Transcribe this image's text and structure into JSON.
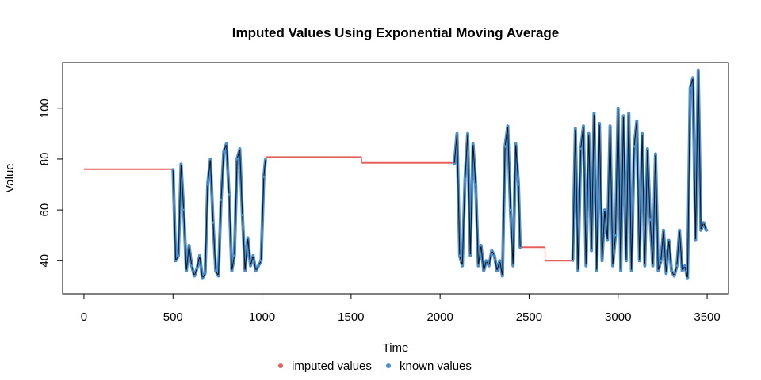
{
  "chart_data": {
    "type": "line",
    "title": "Imputed Values Using Exponential Moving Average",
    "xlabel": "Time",
    "ylabel": "Value",
    "xlim": [
      -120,
      3620
    ],
    "ylim": [
      27,
      118
    ],
    "xticks": [
      0,
      500,
      1000,
      1500,
      2000,
      2500,
      3000,
      3500
    ],
    "yticks": [
      40,
      60,
      80,
      100
    ],
    "legend_position": "bottom",
    "series": [
      {
        "name": "imputed values",
        "color": "#e8605b",
        "segments": [
          {
            "x": [
              0,
              500
            ],
            "y": [
              76,
              76
            ]
          },
          {
            "x": [
              1020,
              1560
            ],
            "y": [
              80.8,
              80.8
            ]
          },
          {
            "x": [
              1560,
              2080
            ],
            "y": [
              78.5,
              78.5
            ]
          },
          {
            "x": [
              2450,
              2590
            ],
            "y": [
              45.3,
              45.3
            ]
          },
          {
            "x": [
              2590,
              2745
            ],
            "y": [
              40,
              40
            ]
          }
        ]
      },
      {
        "name": "known values",
        "color": "#4a8fcf",
        "segments": [
          {
            "x": [
              500,
              515,
              530,
              545,
              560,
              575,
              590,
              605,
              620,
              635,
              650,
              665,
              680,
              695,
              710,
              725,
              740,
              755,
              770,
              785,
              800,
              815,
              830,
              845,
              860,
              875,
              890,
              905,
              920,
              935,
              950,
              965,
              980,
              995,
              1010,
              1020
            ],
            "y": [
              76,
              40,
              42,
              78,
              60,
              36,
              46,
              38,
              34,
              37,
              42,
              33,
              35,
              70,
              80,
              55,
              36,
              34,
              64,
              83,
              86,
              66,
              36,
              42,
              80,
              84,
              58,
              36,
              49,
              38,
              42,
              36,
              38,
              40,
              73,
              80
            ]
          },
          {
            "x": [
              2080,
              2095,
              2110,
              2125,
              2140,
              2155,
              2170,
              2185,
              2200,
              2215,
              2230,
              2245,
              2260,
              2275,
              2290,
              2305,
              2320,
              2335,
              2350,
              2365,
              2380,
              2395,
              2410,
              2425,
              2440,
              2450
            ],
            "y": [
              78,
              90,
              42,
              38,
              72,
              90,
              42,
              86,
              70,
              38,
              46,
              36,
              40,
              38,
              44,
              42,
              36,
              40,
              34,
              85,
              93,
              60,
              38,
              86,
              70,
              45
            ]
          },
          {
            "x": [
              2745,
              2760,
              2775,
              2790,
              2805,
              2820,
              2835,
              2850,
              2865,
              2880,
              2895,
              2910,
              2925,
              2940,
              2955,
              2970,
              2985,
              3000,
              3015,
              3030,
              3045,
              3060,
              3075,
              3090,
              3105,
              3120,
              3135,
              3150,
              3165,
              3180,
              3195,
              3210,
              3225,
              3240,
              3255,
              3270,
              3285,
              3300,
              3315,
              3330,
              3345,
              3360,
              3375,
              3390,
              3405,
              3420,
              3435,
              3450,
              3465,
              3480,
              3495,
              3500
            ],
            "y": [
              40,
              92,
              36,
              84,
              93,
              38,
              90,
              44,
              98,
              36,
              94,
              40,
              60,
              48,
              93,
              38,
              50,
              100,
              36,
              97,
              40,
              98,
              36,
              85,
              95,
              40,
              90,
              38,
              84,
              56,
              38,
              82,
              36,
              40,
              52,
              35,
              48,
              36,
              34,
              38,
              52,
              36,
              38,
              33,
              108,
              112,
              48,
              115,
              52,
              55,
              52,
              52
            ]
          }
        ]
      }
    ]
  }
}
